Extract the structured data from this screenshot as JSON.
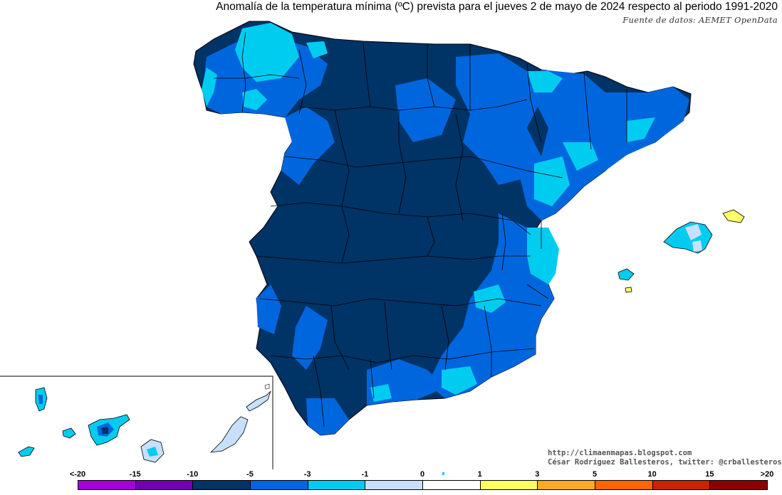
{
  "header": {
    "title": "Anomalía de la temperatura mínima (ºC) prevista para el jueves 2 de mayo de 2024 respecto al periodo 1991-2020",
    "source": "Fuente de datos: AEMET OpenData"
  },
  "credits": {
    "website": "http://climaenmapas.blogspot.com",
    "author": "César Rodríguez Ballesteros, twitter: @crballesteros"
  },
  "legend": {
    "labels": [
      "<-20",
      "-15",
      "-10",
      "-5",
      "-3",
      "-1",
      "0",
      "1",
      "3",
      "5",
      "10",
      "15",
      ">20"
    ],
    "colors": [
      "#d36ff5",
      "#a300d9",
      "#7000b0",
      "#003366",
      "#0066dd",
      "#00ccf0",
      "#c8e0ff",
      "#ffffff",
      "#ffff66",
      "#ffaa22",
      "#ff6600",
      "#cc2200",
      "#8b0000",
      "#6b3a00"
    ]
  },
  "map_colors": {
    "dark_blue": "#003366",
    "mid_blue": "#0066dd",
    "cyan": "#00ccf0",
    "light_blue": "#c8e0ff",
    "yellow": "#ffff66",
    "border": "#000000"
  }
}
